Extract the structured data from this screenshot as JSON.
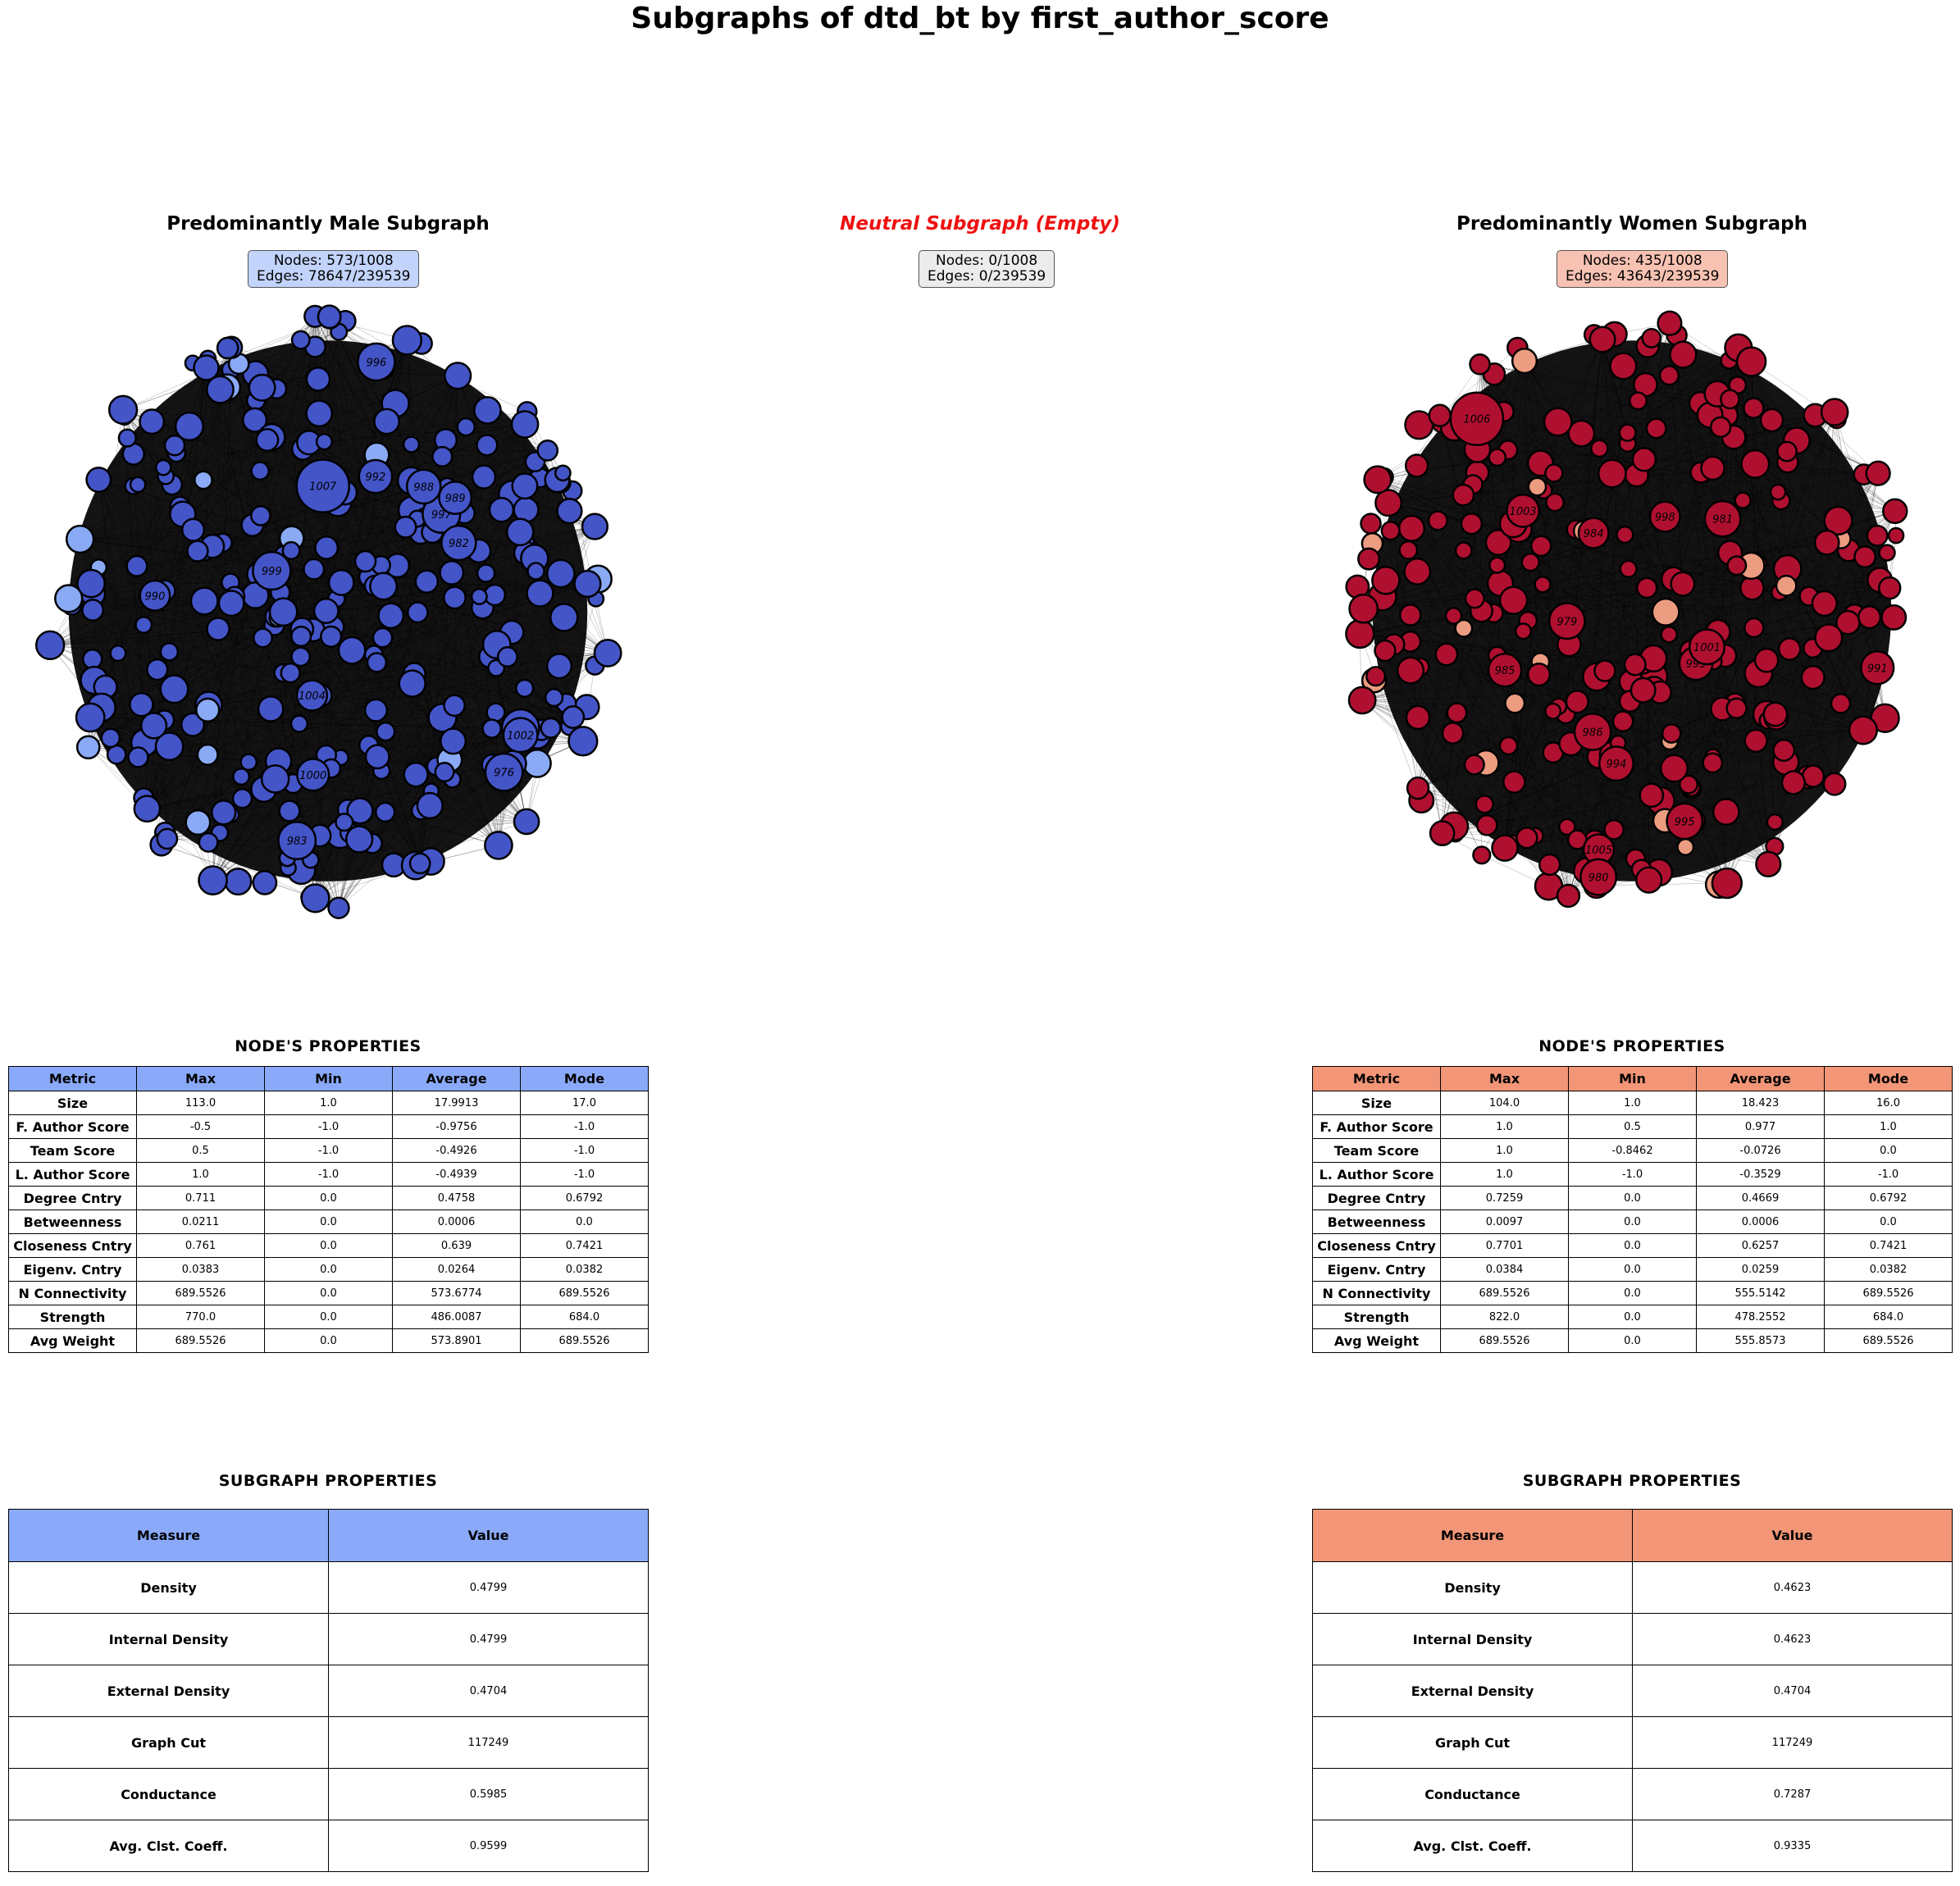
{
  "title": "Subgraphs of dtd_bt by first_author_score",
  "panels": {
    "male": {
      "title": "Predominantly Male Subgraph",
      "info_line1": "Nodes: 573/1008",
      "info_line2": "Edges: 78647/239539",
      "box_color": "#c2d4fc",
      "node_color": "#4455c8",
      "node_color_light": "#8aaaf5",
      "labels": [
        "1000",
        "976",
        "997",
        "987",
        "990",
        "1002",
        "982",
        "992",
        "988",
        "1004",
        "999",
        "983",
        "996",
        "989",
        "1007"
      ]
    },
    "neutral": {
      "title": "Neutral Subgraph (Empty)",
      "info_line1": "Nodes: 0/1008",
      "info_line2": "Edges: 0/239539",
      "box_color": "#ececec"
    },
    "women": {
      "title": "Predominantly Women Subgraph",
      "info_line1": "Nodes: 435/1008",
      "info_line2": "Edges: 43643/239539",
      "box_color": "#f7c2b2",
      "node_color": "#b01030",
      "node_color_light": "#ec9c80",
      "labels": [
        "986",
        "979",
        "995",
        "1005",
        "984",
        "998",
        "1006",
        "1003",
        "985",
        "994",
        "980",
        "991",
        "993",
        "981",
        "1001"
      ]
    }
  },
  "node_props": {
    "title": "NODE'S  PROPERTIES",
    "headers": [
      "Metric",
      "Max",
      "Min",
      "Average",
      "Mode"
    ],
    "male_rows": [
      [
        "Size",
        "113.0",
        "1.0",
        "17.9913",
        "17.0"
      ],
      [
        "F. Author Score",
        "-0.5",
        "-1.0",
        "-0.9756",
        "-1.0"
      ],
      [
        "Team Score",
        "0.5",
        "-1.0",
        "-0.4926",
        "-1.0"
      ],
      [
        "L. Author Score",
        "1.0",
        "-1.0",
        "-0.4939",
        "-1.0"
      ],
      [
        "Degree Cntry",
        "0.711",
        "0.0",
        "0.4758",
        "0.6792"
      ],
      [
        "Betweenness",
        "0.0211",
        "0.0",
        "0.0006",
        "0.0"
      ],
      [
        "Closeness Cntry",
        "0.761",
        "0.0",
        "0.639",
        "0.7421"
      ],
      [
        "Eigenv. Cntry",
        "0.0383",
        "0.0",
        "0.0264",
        "0.0382"
      ],
      [
        "N Connectivity",
        "689.5526",
        "0.0",
        "573.6774",
        "689.5526"
      ],
      [
        "Strength",
        "770.0",
        "0.0",
        "486.0087",
        "684.0"
      ],
      [
        "Avg Weight",
        "689.5526",
        "0.0",
        "573.8901",
        "689.5526"
      ]
    ],
    "women_rows": [
      [
        "Size",
        "104.0",
        "1.0",
        "18.423",
        "16.0"
      ],
      [
        "F. Author Score",
        "1.0",
        "0.5",
        "0.977",
        "1.0"
      ],
      [
        "Team Score",
        "1.0",
        "-0.8462",
        "-0.0726",
        "0.0"
      ],
      [
        "L. Author Score",
        "1.0",
        "-1.0",
        "-0.3529",
        "-1.0"
      ],
      [
        "Degree Cntry",
        "0.7259",
        "0.0",
        "0.4669",
        "0.6792"
      ],
      [
        "Betweenness",
        "0.0097",
        "0.0",
        "0.0006",
        "0.0"
      ],
      [
        "Closeness Cntry",
        "0.7701",
        "0.0",
        "0.6257",
        "0.7421"
      ],
      [
        "Eigenv. Cntry",
        "0.0384",
        "0.0",
        "0.0259",
        "0.0382"
      ],
      [
        "N Connectivity",
        "689.5526",
        "0.0",
        "555.5142",
        "689.5526"
      ],
      [
        "Strength",
        "822.0",
        "0.0",
        "478.2552",
        "684.0"
      ],
      [
        "Avg Weight",
        "689.5526",
        "0.0",
        "555.8573",
        "689.5526"
      ]
    ]
  },
  "subgraph_props": {
    "title": "SUBGRAPH  PROPERTIES",
    "headers": [
      "Measure",
      "Value"
    ],
    "male_rows": [
      [
        "Density",
        "0.4799"
      ],
      [
        "Internal Density",
        "0.4799"
      ],
      [
        "External Density",
        "0.4704"
      ],
      [
        "Graph Cut",
        "117249"
      ],
      [
        "Conductance",
        "0.5985"
      ],
      [
        "Avg. Clst. Coeff.",
        "0.9599"
      ]
    ],
    "women_rows": [
      [
        "Density",
        "0.4623"
      ],
      [
        "Internal Density",
        "0.4623"
      ],
      [
        "External Density",
        "0.4704"
      ],
      [
        "Graph Cut",
        "117249"
      ],
      [
        "Conductance",
        "0.7287"
      ],
      [
        "Avg. Clst. Coeff.",
        "0.9335"
      ]
    ]
  },
  "colors": {
    "male_header": "#8aaaf9",
    "women_header": "#f29677",
    "neutral_title": "#ee1111"
  }
}
